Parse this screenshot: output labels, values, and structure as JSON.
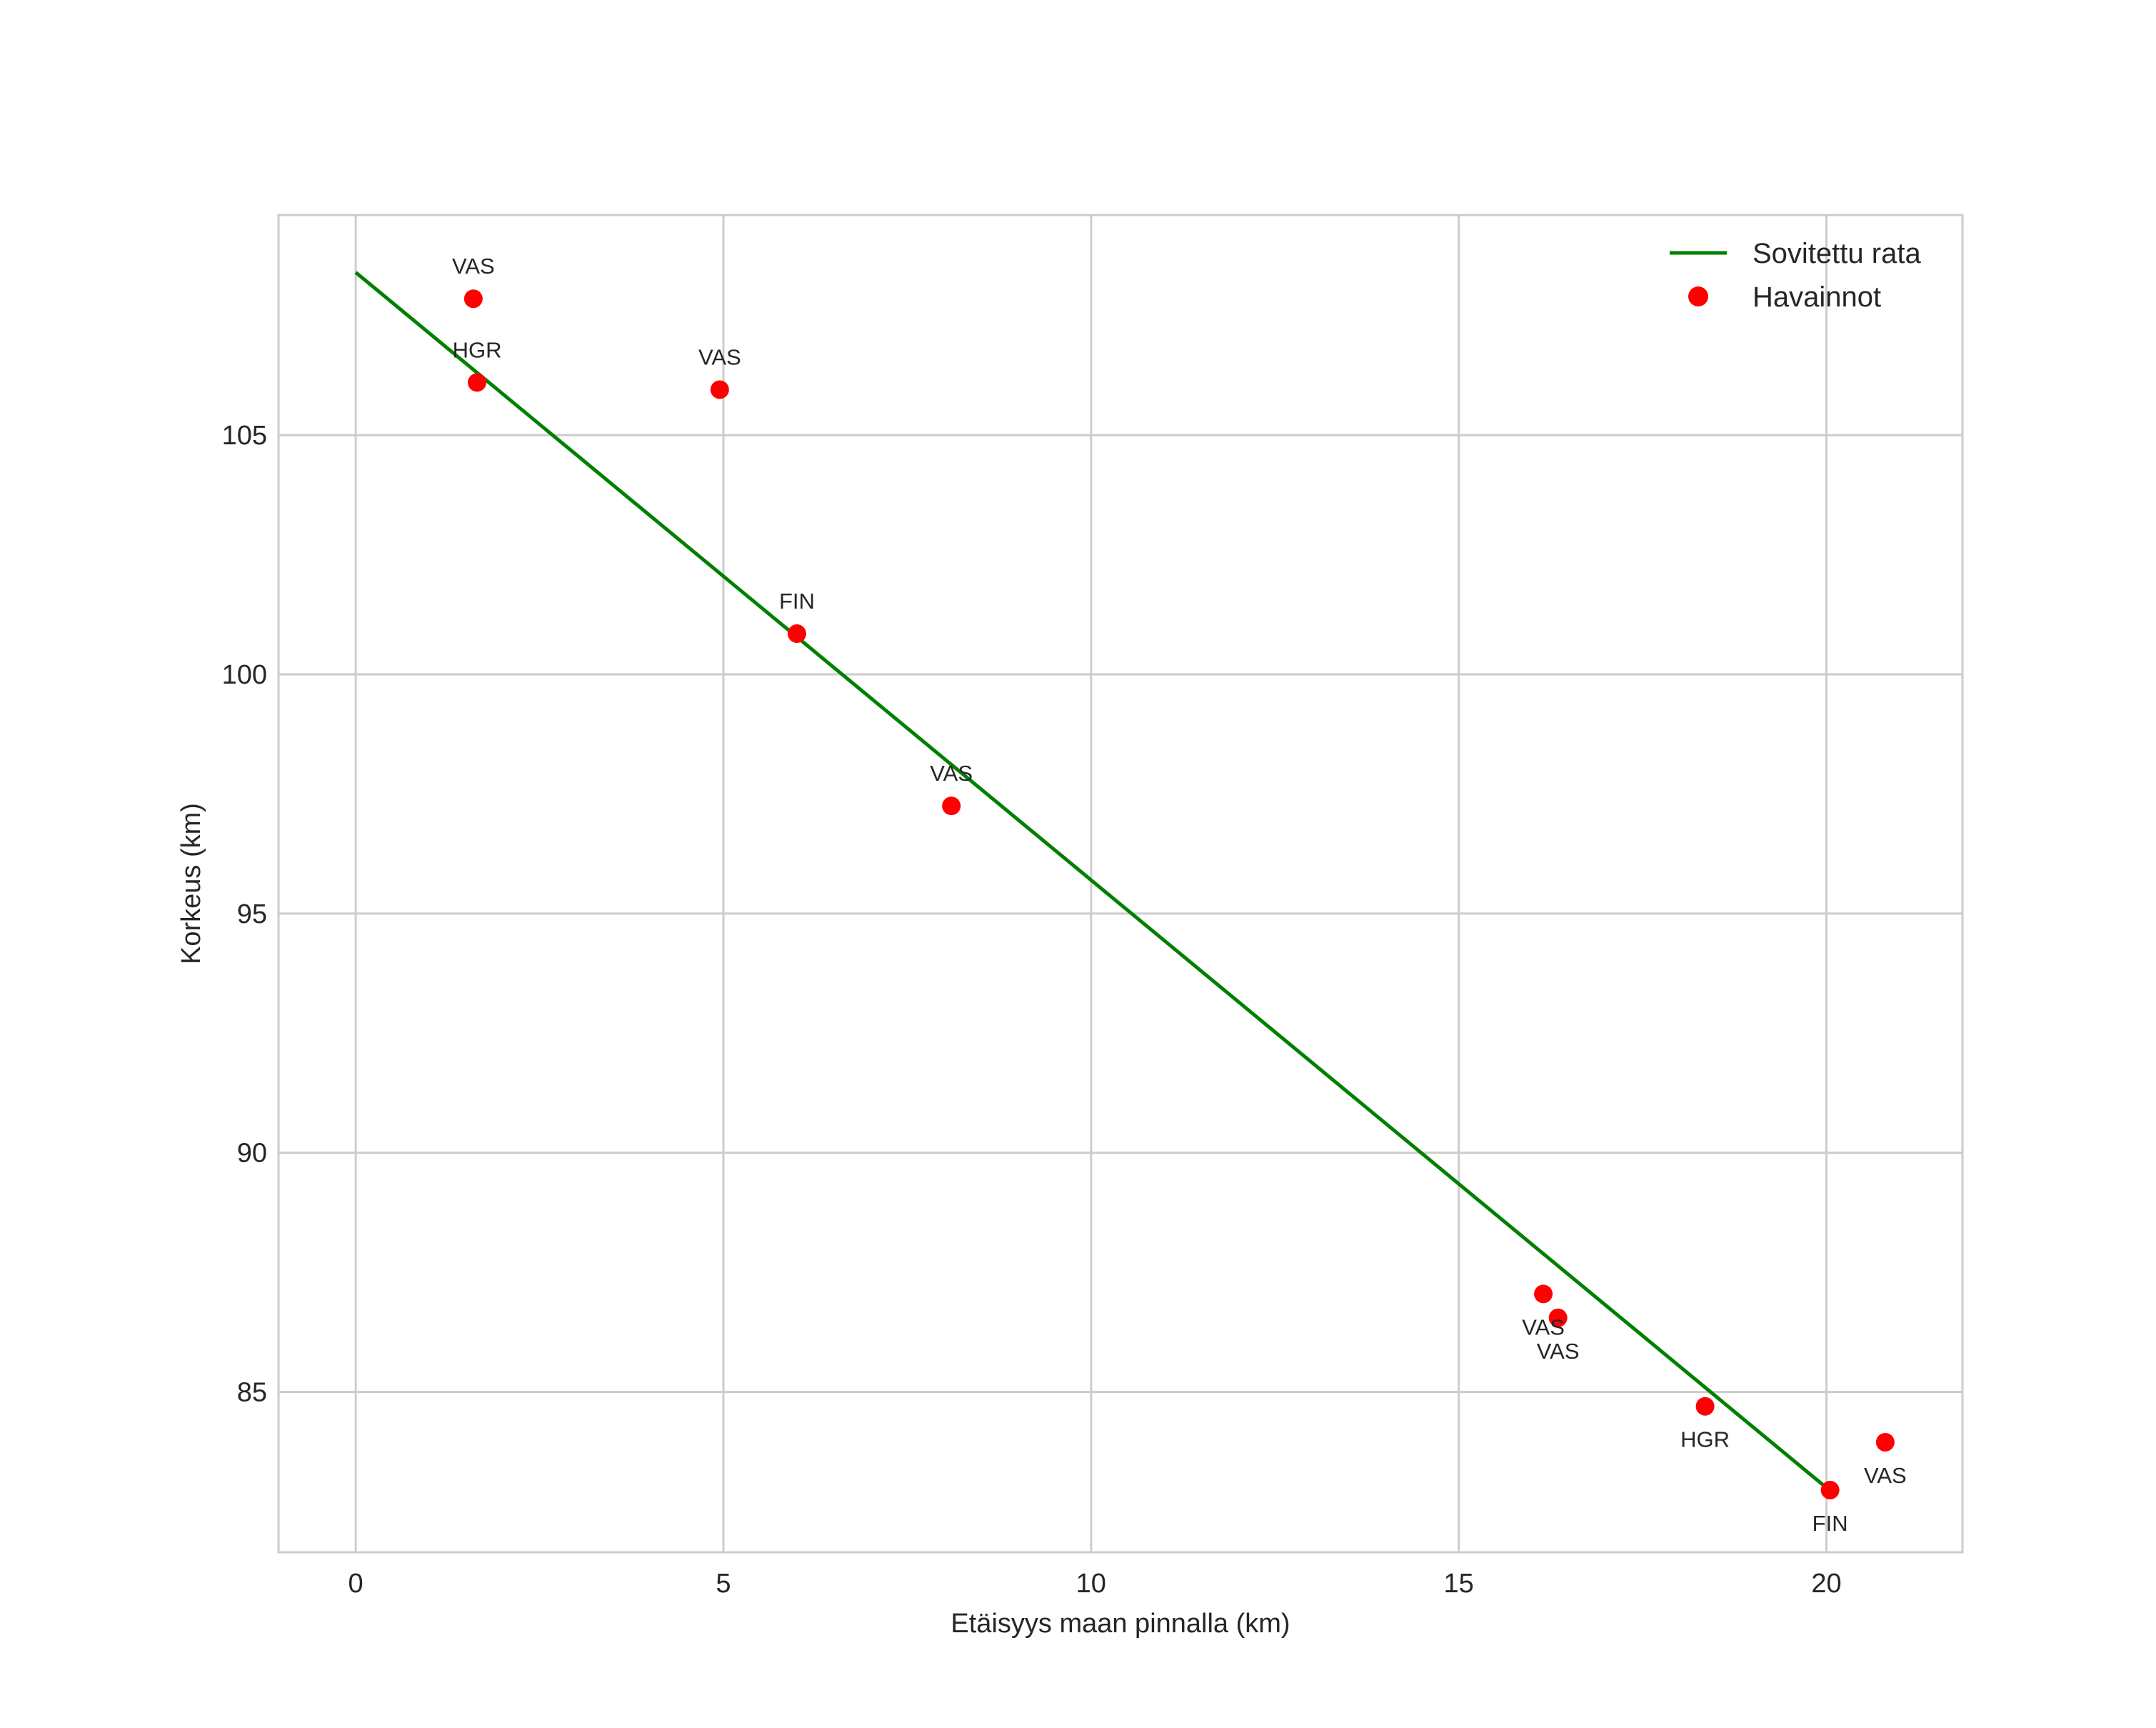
{
  "chart_data": {
    "type": "scatter",
    "title": "",
    "xlabel": "Etäisyys maan pinnalla (km)",
    "ylabel": "Korkeus (km)",
    "xlim": [
      -1.05,
      21.85
    ],
    "ylim": [
      81.65,
      109.6
    ],
    "xticks": [
      0,
      5,
      10,
      15,
      20
    ],
    "yticks": [
      85,
      90,
      95,
      100,
      105
    ],
    "grid": true,
    "legend": {
      "location": "top-right"
    },
    "series": [
      {
        "name": "Sovitettu rata",
        "kind": "line",
        "color": "#008000",
        "x": [
          0,
          20.0
        ],
        "y": [
          108.4,
          83.0
        ]
      },
      {
        "name": "Havainnot",
        "kind": "scatter",
        "color": "#ff0000",
        "points": [
          {
            "x": 1.6,
            "y": 107.85,
            "label": "VAS",
            "label_pos": "above"
          },
          {
            "x": 1.65,
            "y": 106.1,
            "label": "HGR",
            "label_pos": "above"
          },
          {
            "x": 4.95,
            "y": 105.95,
            "label": "VAS",
            "label_pos": "above"
          },
          {
            "x": 6.0,
            "y": 100.85,
            "label": "FIN",
            "label_pos": "above"
          },
          {
            "x": 8.1,
            "y": 97.25,
            "label": "VAS",
            "label_pos": "above"
          },
          {
            "x": 16.15,
            "y": 87.05,
            "label": "VAS",
            "label_pos": "below"
          },
          {
            "x": 16.35,
            "y": 86.55,
            "label": "VAS",
            "label_pos": "below"
          },
          {
            "x": 18.35,
            "y": 84.7,
            "label": "HGR",
            "label_pos": "below"
          },
          {
            "x": 20.05,
            "y": 82.95,
            "label": "FIN",
            "label_pos": "below"
          },
          {
            "x": 20.8,
            "y": 83.95,
            "label": "VAS",
            "label_pos": "below"
          }
        ]
      }
    ]
  }
}
